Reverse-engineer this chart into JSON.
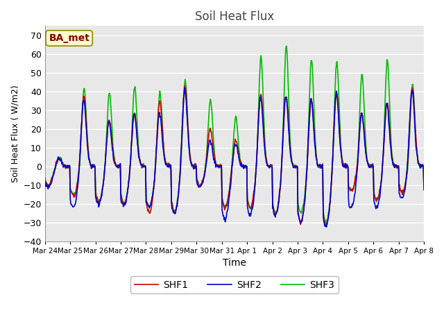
{
  "title": "Soil Heat Flux",
  "xlabel": "Time",
  "ylabel": "Soil Heat Flux (W/m2)",
  "ylim": [
    -40,
    75
  ],
  "yticks": [
    -40,
    -30,
    -20,
    -10,
    0,
    10,
    20,
    30,
    40,
    50,
    60,
    70
  ],
  "fig_bg_color": "#ffffff",
  "plot_bg_color": "#e8e8e8",
  "grid_color": "#ffffff",
  "line_colors": {
    "SHF1": "#cc0000",
    "SHF2": "#0000cc",
    "SHF3": "#00bb00"
  },
  "line_widths": {
    "SHF1": 1.2,
    "SHF2": 1.2,
    "SHF3": 1.2
  },
  "annotation_text": "BA_met",
  "annotation_color": "#880000",
  "annotation_bg": "#ffffcc",
  "annotation_edge": "#888800",
  "xtick_labels": [
    "Mar 24",
    "Mar 25",
    "Mar 26",
    "Mar 27",
    "Mar 28",
    "Mar 29",
    "Mar 30",
    "Mar 31",
    "Apr 1",
    "Apr 2",
    "Apr 3",
    "Apr 4",
    "Apr 5",
    "Apr 6",
    "Apr 7",
    "Apr 8"
  ],
  "n_days": 15,
  "pts_per_day": 48
}
